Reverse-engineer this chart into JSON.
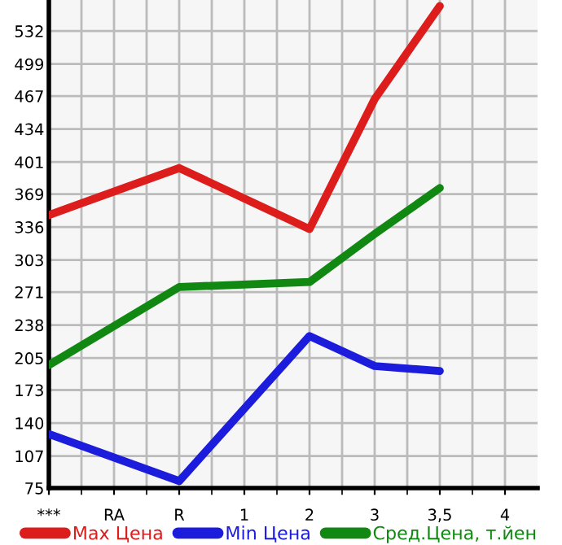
{
  "chart_data": {
    "type": "line",
    "categories": [
      "***",
      "RA",
      "R",
      "1",
      "2",
      "3",
      "3,5",
      "4"
    ],
    "series": [
      {
        "name": "Max Цена",
        "color": "#dd1c1c",
        "values": [
          348,
          null,
          395,
          null,
          334,
          464,
          557,
          null
        ]
      },
      {
        "name": "Min Цена",
        "color": "#1c1cdd",
        "values": [
          129,
          null,
          82,
          null,
          227,
          197,
          192,
          null
        ]
      },
      {
        "name": "Сред.Цена, т.йен",
        "color": "#118811",
        "values": [
          198,
          null,
          276,
          null,
          281,
          329,
          375,
          null
        ]
      }
    ],
    "ylim": [
      75,
      563
    ],
    "yticks": [
      75,
      107,
      140,
      173,
      205,
      238,
      271,
      303,
      336,
      369,
      401,
      434,
      467,
      499,
      532
    ],
    "grid": true,
    "legend": "bottom",
    "marker": "none",
    "line_style": "solid"
  }
}
